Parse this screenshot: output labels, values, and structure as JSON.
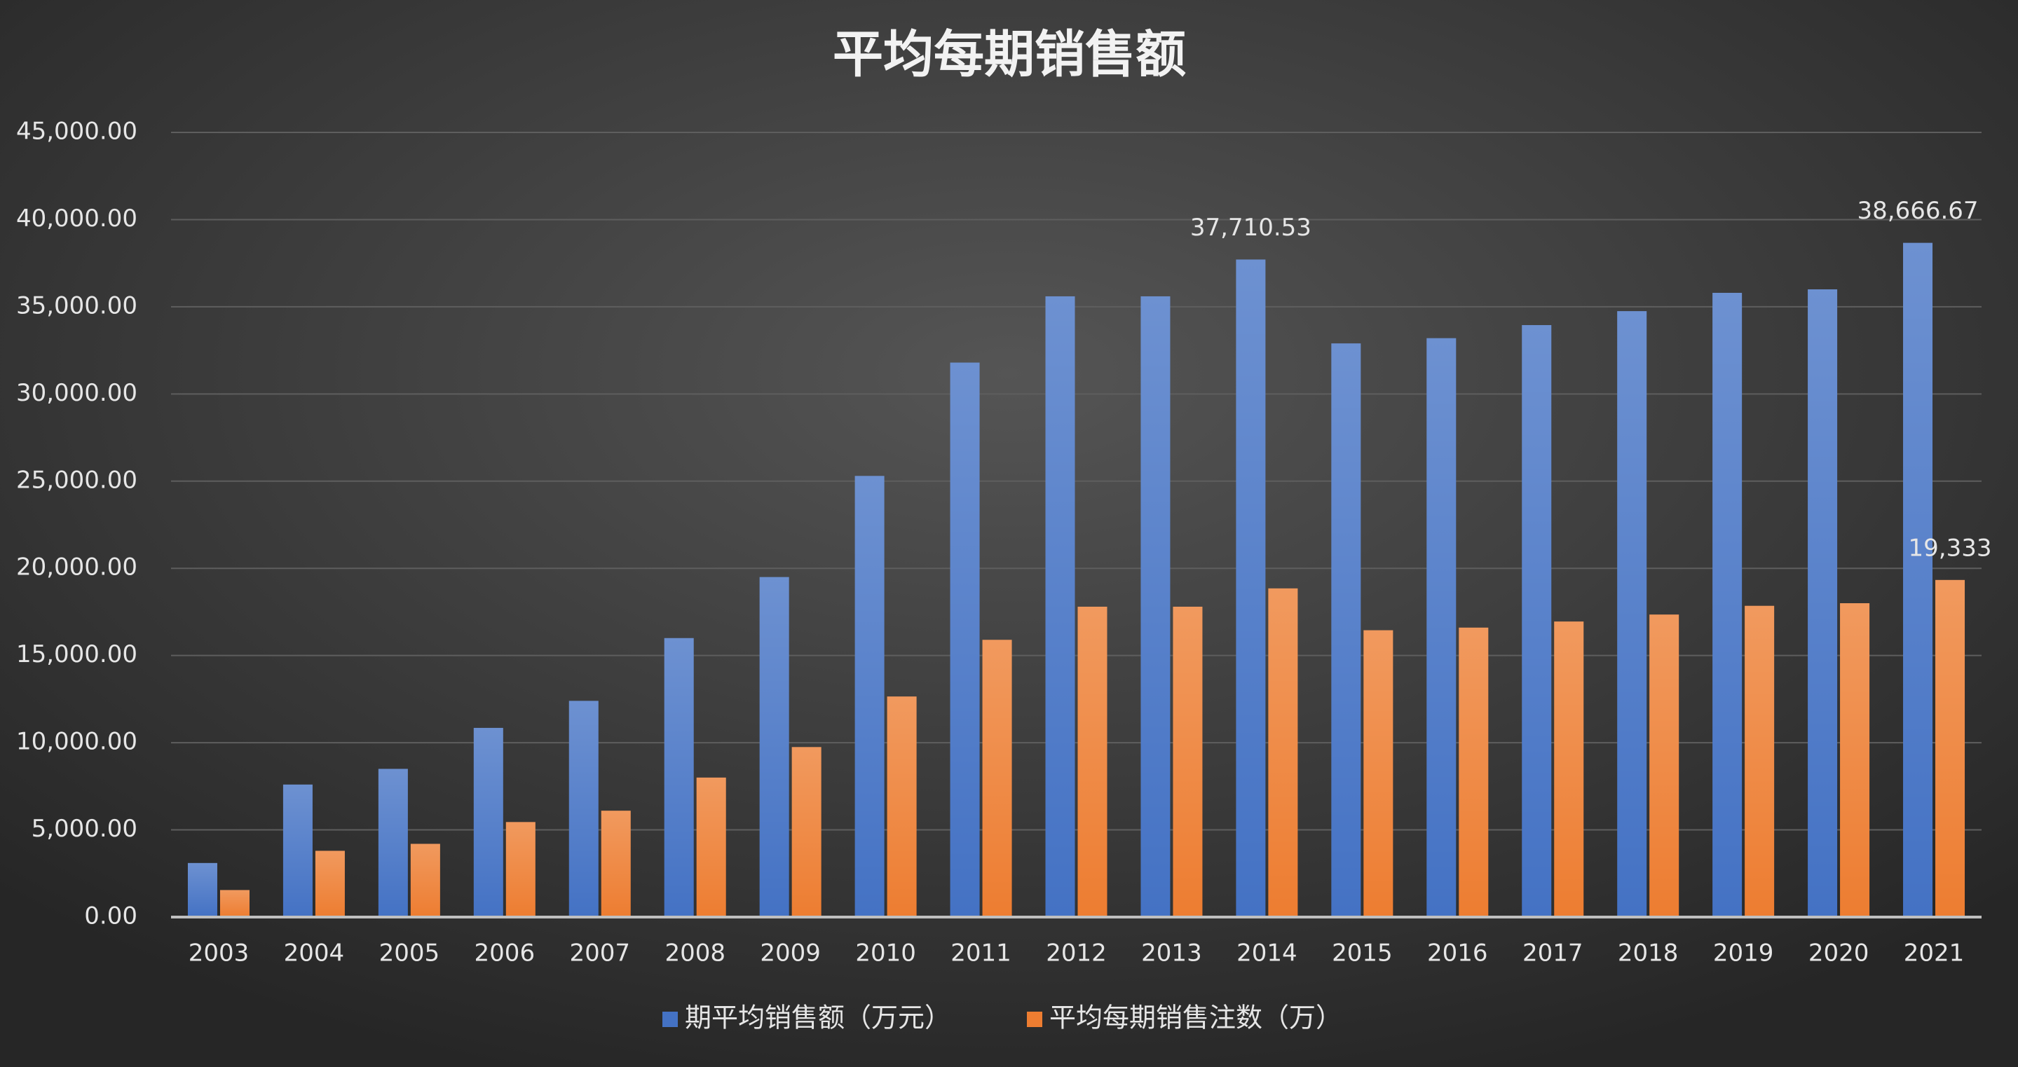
{
  "chart_data": {
    "type": "bar",
    "title": "平均每期销售额",
    "categories": [
      "2003",
      "2004",
      "2005",
      "2006",
      "2007",
      "2008",
      "2009",
      "2010",
      "2011",
      "2012",
      "2013",
      "2014",
      "2015",
      "2016",
      "2017",
      "2018",
      "2019",
      "2020",
      "2021"
    ],
    "series": [
      {
        "name": "期平均销售额（万元）",
        "color": "#4472c4",
        "values": [
          3100,
          7600,
          8500,
          10850,
          12400,
          16000,
          19500,
          25300,
          31800,
          35600,
          35600,
          37710.53,
          32900,
          33200,
          33950,
          34750,
          35800,
          36000,
          38666.67
        ],
        "value_labels": [
          null,
          null,
          null,
          null,
          null,
          null,
          null,
          null,
          null,
          null,
          null,
          "37,710.53",
          null,
          null,
          null,
          null,
          null,
          null,
          "38,666.67"
        ]
      },
      {
        "name": "平均每期销售注数（万）",
        "color": "#ed7d31",
        "values": [
          1550,
          3800,
          4200,
          5450,
          6100,
          8000,
          9750,
          12650,
          15900,
          17800,
          17800,
          18850,
          16450,
          16600,
          16950,
          17350,
          17850,
          18000,
          19333
        ],
        "value_labels": [
          null,
          null,
          null,
          null,
          null,
          null,
          null,
          null,
          null,
          null,
          null,
          null,
          null,
          null,
          null,
          null,
          null,
          null,
          "19,333"
        ]
      }
    ],
    "ylim": [
      0,
      45000
    ],
    "yticks": [
      {
        "value": 0,
        "label": "0.00"
      },
      {
        "value": 5000,
        "label": "5,000.00"
      },
      {
        "value": 10000,
        "label": "10,000.00"
      },
      {
        "value": 15000,
        "label": "15,000.00"
      },
      {
        "value": 20000,
        "label": "20,000.00"
      },
      {
        "value": 25000,
        "label": "25,000.00"
      },
      {
        "value": 30000,
        "label": "30,000.00"
      },
      {
        "value": 35000,
        "label": "35,000.00"
      },
      {
        "value": 40000,
        "label": "40,000.00"
      },
      {
        "value": 45000,
        "label": "45,000.00"
      }
    ],
    "grid": true,
    "legend": "bottom"
  }
}
